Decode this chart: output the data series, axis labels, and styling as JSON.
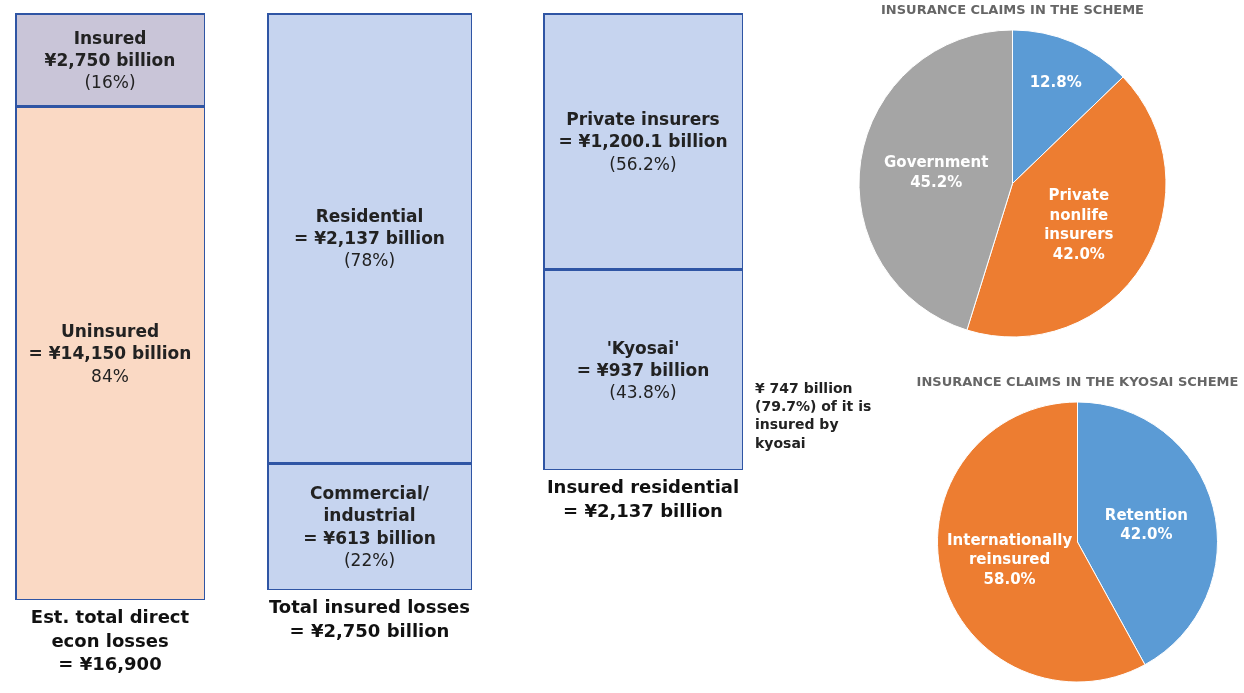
{
  "chart_data": [
    {
      "type": "bar",
      "stacked": true,
      "categories": [
        null
      ],
      "legend": false,
      "xlabel": "Est. total direct\necon losses\n= ¥16,900",
      "series": [
        {
          "name": "Uninsured\n= ¥14,150 billion",
          "color": "#fad9c4",
          "values": [
            84
          ],
          "value_labels": [
            "84%"
          ]
        },
        {
          "name": "Insured\n¥2,750 billion",
          "color": "#c9c5d8",
          "values": [
            16
          ],
          "value_labels": [
            "(16%)"
          ]
        }
      ]
    },
    {
      "type": "bar",
      "stacked": true,
      "categories": [
        null
      ],
      "legend": false,
      "xlabel": "Total insured losses\n= ¥2,750 billion",
      "series": [
        {
          "name": "Commercial/\nindustrial\n= ¥613 billion",
          "color": "#c6d4ef",
          "values": [
            22
          ],
          "value_labels": [
            "(22%)"
          ]
        },
        {
          "name": "Residential\n= ¥2,137 billion",
          "color": "#c6d4ef",
          "values": [
            78
          ],
          "value_labels": [
            "(78%)"
          ]
        }
      ]
    },
    {
      "type": "bar",
      "stacked": true,
      "categories": [
        null
      ],
      "legend": false,
      "xlabel": "Insured residential\n= ¥2,137 billion",
      "annotations": [
        "¥ 747 billion\n(79.7%) of it is\ninsured by\nkyosai"
      ],
      "series": [
        {
          "name": "'Kyosai'\n= ¥937 billion",
          "color": "#c6d4ef",
          "values": [
            43.8
          ],
          "value_labels": [
            "(43.8%)"
          ]
        },
        {
          "name": "Private insurers\n= ¥1,200.1 billion",
          "color": "#c6d4ef",
          "values": [
            56.2
          ],
          "value_labels": [
            "(56.2%)"
          ]
        }
      ]
    },
    {
      "type": "pie",
      "title": "INSURANCE CLAIMS IN THE SCHEME",
      "categories": [
        null,
        "Private nonlife insurers",
        "Government"
      ],
      "values": [
        12.8,
        42.0,
        45.2
      ],
      "value_labels": [
        "12.8%",
        "42.0%",
        "45.2%"
      ],
      "colors": [
        "#5b9bd5",
        "#ed7d31",
        "#a5a5a5"
      ]
    },
    {
      "type": "pie",
      "title": "INSURANCE CLAIMS IN THE KYOSAI SCHEME",
      "categories": [
        "Retention",
        "Internationally reinsured"
      ],
      "values": [
        42.0,
        58.0
      ],
      "value_labels": [
        "42.0%",
        "58.0%"
      ],
      "colors": [
        "#5b9bd5",
        "#ed7d31"
      ]
    }
  ]
}
